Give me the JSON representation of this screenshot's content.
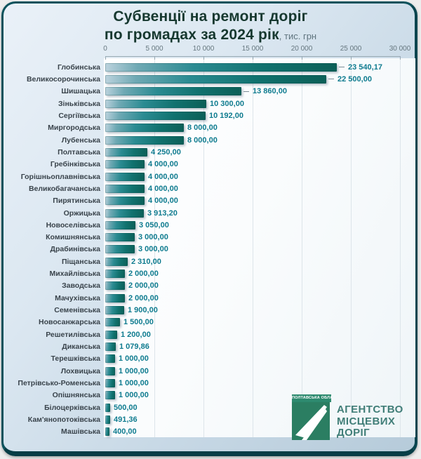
{
  "title": {
    "line1": "Субвенції на ремонт доріг",
    "line2": "по громадах за 2024 рік",
    "unit": ", тис. грн"
  },
  "chart_data": {
    "type": "bar",
    "orientation": "horizontal",
    "title": "Субвенції на ремонт доріг по громадах за 2024 рік",
    "unit": "тис. грн",
    "xlim": [
      0,
      30000
    ],
    "x_ticks": [
      0,
      5000,
      10000,
      15000,
      20000,
      25000,
      30000
    ],
    "x_tick_labels": [
      "0",
      "5 000",
      "10 000",
      "15 000",
      "20 000",
      "25 000",
      "30 000"
    ],
    "grid": true,
    "categories": [
      "Глобинська",
      "Великосорочинська",
      "Шишацька",
      "Зіньківська",
      "Сергіївська",
      "Миргородська",
      "Лубенська",
      "Полтавська",
      "Гребінківська",
      "Горішньоплавнівська",
      "Великобагачанська",
      "Пирятинська",
      "Оржицька",
      "Новоселівська",
      "Комишнянська",
      "Драбинівська",
      "Піщанська",
      "Михайлівська",
      "Заводська",
      "Мачухівська",
      "Семенівська",
      "Новосанжарська",
      "Решетилівська",
      "Диканська",
      "Терешківська",
      "Лохвицька",
      "Петрівсько-Роменська",
      "Опішнянська",
      "Білоцерківська",
      "Кам'янопотоківська",
      "Машівська"
    ],
    "values": [
      23540.17,
      22500,
      13860,
      10300,
      10192,
      8000,
      8000,
      4250,
      4000,
      4000,
      4000,
      4000,
      3913.2,
      3050,
      3000,
      3000,
      2310,
      2000,
      2000,
      2000,
      1900,
      1500,
      1200,
      1079.86,
      1000,
      1000,
      1000,
      1000,
      500,
      491.36,
      400
    ],
    "value_labels": [
      "23 540,17",
      "22 500,00",
      "13 860,00",
      "10 300,00",
      "10 192,00",
      "8 000,00",
      "8 000,00",
      "4 250,00",
      "4 000,00",
      "4 000,00",
      "4 000,00",
      "4 000,00",
      "3 913,20",
      "3 050,00",
      "3 000,00",
      "3 000,00",
      "2 310,00",
      "2 000,00",
      "2 000,00",
      "2 000,00",
      "1 900,00",
      "1 500,00",
      "1 200,00",
      "1 079,86",
      "1 000,00",
      "1 000,00",
      "1 000,00",
      "1 000,00",
      "500,00",
      "491,36",
      "400,00"
    ],
    "leader_dash_rows": [
      0,
      1,
      2
    ]
  },
  "logo": {
    "region": "ПОЛТАВСЬКА ОБЛАСТЬ",
    "lines": [
      "АГЕНТСТВО",
      "МІСЦЕВИХ",
      "ДОРІГ"
    ]
  },
  "colors": {
    "bar_dark": "#0b5f57",
    "bar_light": "#bdd3de",
    "value_text": "#0e7b8f",
    "category_text": "#39434b",
    "title_text": "#16382f",
    "card_border": "#0b525c",
    "logo_green": "#2b7e62",
    "logo_text": "#417e78"
  }
}
